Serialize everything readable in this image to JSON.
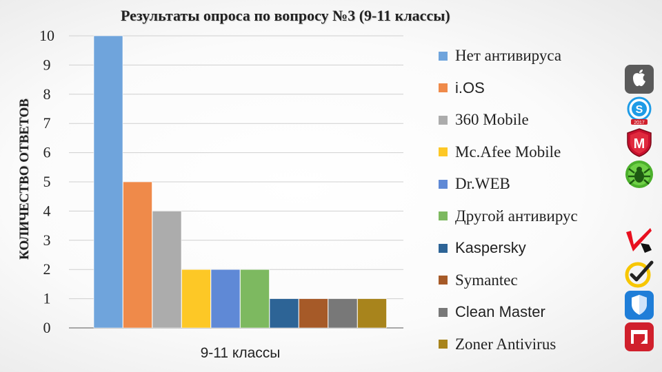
{
  "chart_data": {
    "type": "bar",
    "title": "Результаты опроса по вопросу №3 (9-11 классы)",
    "ylabel": "КОЛИЧЕСТВО ОТВЕТОВ",
    "xlabel": "",
    "categories": [
      "9-11 классы"
    ],
    "ylim": [
      0,
      10
    ],
    "yticks": [
      0,
      1,
      2,
      3,
      4,
      5,
      6,
      7,
      8,
      9,
      10
    ],
    "grid": true,
    "legend_position": "right",
    "series": [
      {
        "name": "Нет антивируса",
        "values": [
          10
        ],
        "color": "#6fa4dc"
      },
      {
        "name": "i.OS",
        "values": [
          5
        ],
        "color": "#ef8a4a"
      },
      {
        "name": "360 Mobile",
        "values": [
          4
        ],
        "color": "#acacac"
      },
      {
        "name": "Mc.Afee Mobile",
        "values": [
          2
        ],
        "color": "#fdc826"
      },
      {
        "name": "Dr.WEB",
        "values": [
          2
        ],
        "color": "#5f89d6"
      },
      {
        "name": "Другой антивирус",
        "values": [
          2
        ],
        "color": "#7db960"
      },
      {
        "name": "Kaspersky",
        "values": [
          1
        ],
        "color": "#2d6496"
      },
      {
        "name": "Symantec",
        "values": [
          1
        ],
        "color": "#a65a28"
      },
      {
        "name": "Clean Master",
        "values": [
          1
        ],
        "color": "#787878"
      },
      {
        "name": "Zoner Antivirus",
        "values": [
          1
        ],
        "color": "#a8841c"
      }
    ]
  },
  "icons": [
    {
      "name": "apple-icon",
      "color": "#5a5a5a"
    },
    {
      "name": "360-security-icon",
      "color": "#1e9be6",
      "caption": "2017"
    },
    {
      "name": "mcafee-shield-icon",
      "color": "#c8102e",
      "letter": "M"
    },
    {
      "name": "drweb-spider-icon",
      "color": "#4cb02c"
    },
    {
      "name": "kaspersky-icon",
      "color": "#e8101f"
    },
    {
      "name": "norton-check-icon",
      "color": "#f7c600"
    },
    {
      "name": "clean-master-shield-icon",
      "color": "#1f7ed8"
    },
    {
      "name": "zoner-icon",
      "color": "#d0202c"
    }
  ]
}
